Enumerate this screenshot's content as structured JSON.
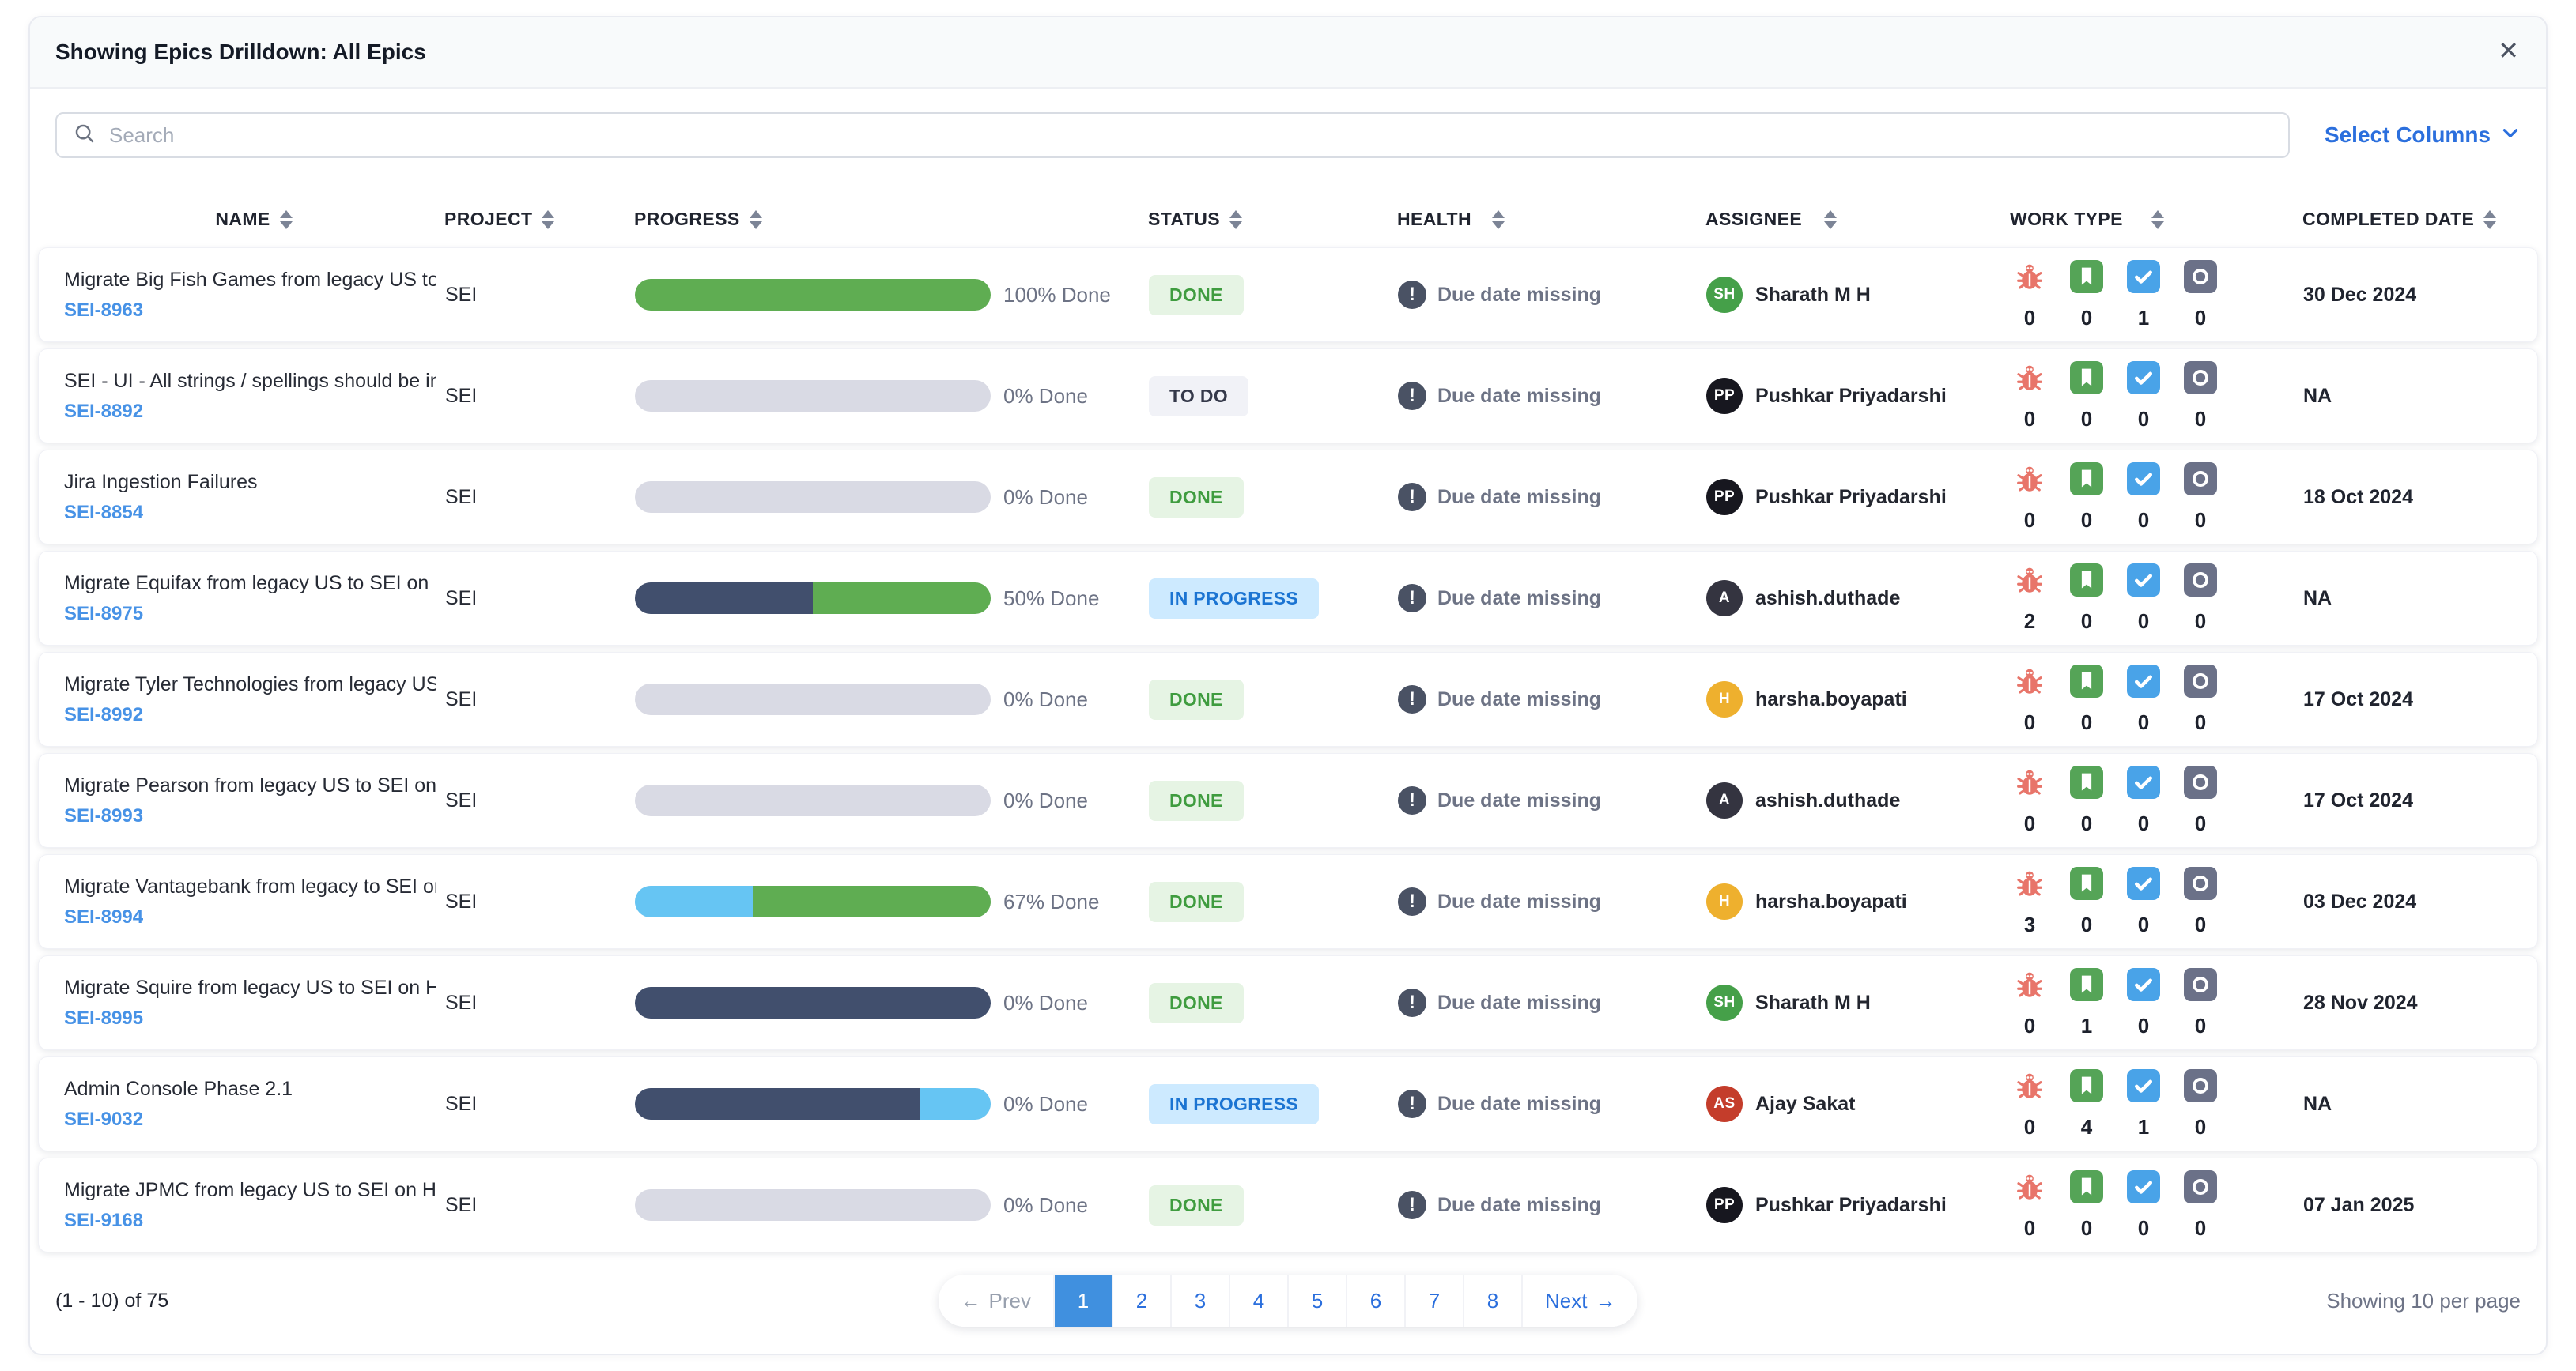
{
  "header": {
    "title": "Showing Epics Drilldown: All Epics",
    "close_icon": "✕"
  },
  "toolbar": {
    "search_placeholder": "Search",
    "select_columns_label": "Select Columns"
  },
  "table": {
    "columns": [
      {
        "id": "name",
        "label": "NAME"
      },
      {
        "id": "project",
        "label": "PROJECT"
      },
      {
        "id": "progress",
        "label": "PROGRESS"
      },
      {
        "id": "status",
        "label": "STATUS"
      },
      {
        "id": "health",
        "label": "HEALTH"
      },
      {
        "id": "assignee",
        "label": "ASSIGNEE"
      },
      {
        "id": "worktype",
        "label": "WORK TYPE"
      },
      {
        "id": "date",
        "label": "COMPLETED DATE"
      }
    ],
    "work_type_icons": [
      "bug-icon",
      "story-icon",
      "task-icon",
      "other-icon"
    ],
    "rows": [
      {
        "name": "Migrate Big Fish Games from legacy US to SEI ...",
        "key": "SEI-8963",
        "project": "SEI",
        "progress": {
          "label": "100% Done",
          "segments": [
            {
              "color": "green",
              "pct": 100
            }
          ]
        },
        "status": {
          "label": "DONE",
          "type": "done"
        },
        "health": "Due date missing",
        "assignee": {
          "initials": "SH",
          "name": "Sharath M H",
          "color": "#45a049"
        },
        "work_type_counts": [
          0,
          0,
          1,
          0
        ],
        "completed": "30 Dec 2024"
      },
      {
        "name": "SEI - UI - All strings / spellings should be in A...",
        "key": "SEI-8892",
        "project": "SEI",
        "progress": {
          "label": "0% Done",
          "segments": []
        },
        "status": {
          "label": "TO DO",
          "type": "todo"
        },
        "health": "Due date missing",
        "assignee": {
          "initials": "PP",
          "name": "Pushkar Priyadarshi",
          "color": "#17171f"
        },
        "work_type_counts": [
          0,
          0,
          0,
          0
        ],
        "completed": "NA"
      },
      {
        "name": "Jira Ingestion Failures",
        "key": "SEI-8854",
        "project": "SEI",
        "progress": {
          "label": "0% Done",
          "segments": []
        },
        "status": {
          "label": "DONE",
          "type": "done"
        },
        "health": "Due date missing",
        "assignee": {
          "initials": "PP",
          "name": "Pushkar Priyadarshi",
          "color": "#17171f"
        },
        "work_type_counts": [
          0,
          0,
          0,
          0
        ],
        "completed": "18 Oct 2024"
      },
      {
        "name": "Migrate Equifax from legacy US to SEI on Harn...",
        "key": "SEI-8975",
        "project": "SEI",
        "progress": {
          "label": "50% Done",
          "segments": [
            {
              "color": "slate",
              "pct": 50
            },
            {
              "color": "green",
              "pct": 50
            }
          ]
        },
        "status": {
          "label": "IN PROGRESS",
          "type": "inprog"
        },
        "health": "Due date missing",
        "assignee": {
          "initials": "A",
          "name": "ashish.duthade",
          "color": "#343440"
        },
        "work_type_counts": [
          2,
          0,
          0,
          0
        ],
        "completed": "NA"
      },
      {
        "name": "Migrate Tyler Technologies from legacy US to ...",
        "key": "SEI-8992",
        "project": "SEI",
        "progress": {
          "label": "0% Done",
          "segments": []
        },
        "status": {
          "label": "DONE",
          "type": "done"
        },
        "health": "Due date missing",
        "assignee": {
          "initials": "H",
          "name": "harsha.boyapati",
          "color": "#eeb02e"
        },
        "work_type_counts": [
          0,
          0,
          0,
          0
        ],
        "completed": "17 Oct 2024"
      },
      {
        "name": "Migrate Pearson from legacy US to SEI on Har...",
        "key": "SEI-8993",
        "project": "SEI",
        "progress": {
          "label": "0% Done",
          "segments": []
        },
        "status": {
          "label": "DONE",
          "type": "done"
        },
        "health": "Due date missing",
        "assignee": {
          "initials": "A",
          "name": "ashish.duthade",
          "color": "#343440"
        },
        "work_type_counts": [
          0,
          0,
          0,
          0
        ],
        "completed": "17 Oct 2024"
      },
      {
        "name": "Migrate Vantagebank from legacy to SEI on Ha...",
        "key": "SEI-8994",
        "project": "SEI",
        "progress": {
          "label": "67% Done",
          "segments": [
            {
              "color": "blue",
              "pct": 33
            },
            {
              "color": "green",
              "pct": 67
            }
          ]
        },
        "status": {
          "label": "DONE",
          "type": "done"
        },
        "health": "Due date missing",
        "assignee": {
          "initials": "H",
          "name": "harsha.boyapati",
          "color": "#eeb02e"
        },
        "work_type_counts": [
          3,
          0,
          0,
          0
        ],
        "completed": "03 Dec 2024"
      },
      {
        "name": "Migrate Squire from legacy US to SEI on Harne...",
        "key": "SEI-8995",
        "project": "SEI",
        "progress": {
          "label": "0% Done",
          "segments": [
            {
              "color": "slate",
              "pct": 100
            }
          ]
        },
        "status": {
          "label": "DONE",
          "type": "done"
        },
        "health": "Due date missing",
        "assignee": {
          "initials": "SH",
          "name": "Sharath M H",
          "color": "#45a049"
        },
        "work_type_counts": [
          0,
          1,
          0,
          0
        ],
        "completed": "28 Nov 2024"
      },
      {
        "name": "Admin Console Phase 2.1",
        "key": "SEI-9032",
        "project": "SEI",
        "progress": {
          "label": "0% Done",
          "segments": [
            {
              "color": "slate",
              "pct": 80
            },
            {
              "color": "blue",
              "pct": 20
            }
          ]
        },
        "status": {
          "label": "IN PROGRESS",
          "type": "inprog"
        },
        "health": "Due date missing",
        "assignee": {
          "initials": "AS",
          "name": "Ajay Sakat",
          "color": "#c43d2b"
        },
        "work_type_counts": [
          0,
          4,
          1,
          0
        ],
        "completed": "NA"
      },
      {
        "name": "Migrate JPMC from legacy US to SEI on Harne...",
        "key": "SEI-9168",
        "project": "SEI",
        "progress": {
          "label": "0% Done",
          "segments": []
        },
        "status": {
          "label": "DONE",
          "type": "done"
        },
        "health": "Due date missing",
        "assignee": {
          "initials": "PP",
          "name": "Pushkar Priyadarshi",
          "color": "#17171f"
        },
        "work_type_counts": [
          0,
          0,
          0,
          0
        ],
        "completed": "07 Jan 2025"
      }
    ]
  },
  "footer": {
    "range_text": "(1 - 10) of 75",
    "per_page_text": "Showing 10 per page",
    "pagination": {
      "prev_label": "Prev",
      "next_label": "Next",
      "prev_arrow": "←",
      "next_arrow": "→",
      "pages": [
        "1",
        "2",
        "3",
        "4",
        "5",
        "6",
        "7",
        "8"
      ],
      "active_page": "1"
    }
  },
  "colors": {
    "accent_blue": "#2b6fdd",
    "link_blue": "#4792e6",
    "status_done_bg": "#e6f4e4",
    "status_done_text": "#3f9c3f",
    "status_todo_bg": "#f1f2f7",
    "status_todo_text": "#35394a",
    "status_inprogress_bg": "#cdeaff",
    "status_inprogress_text": "#1b74d2",
    "progress_green": "#5fad52",
    "progress_slate": "#414f6d",
    "progress_blue": "#66c5f3",
    "progress_track": "#d9dae4",
    "bug_red": "#e8756a",
    "story_green": "#55a457",
    "task_blue": "#49a3e8",
    "other_slate": "#6b7188",
    "health_icon": "#4a5264",
    "pagination_active": "#4090df"
  }
}
